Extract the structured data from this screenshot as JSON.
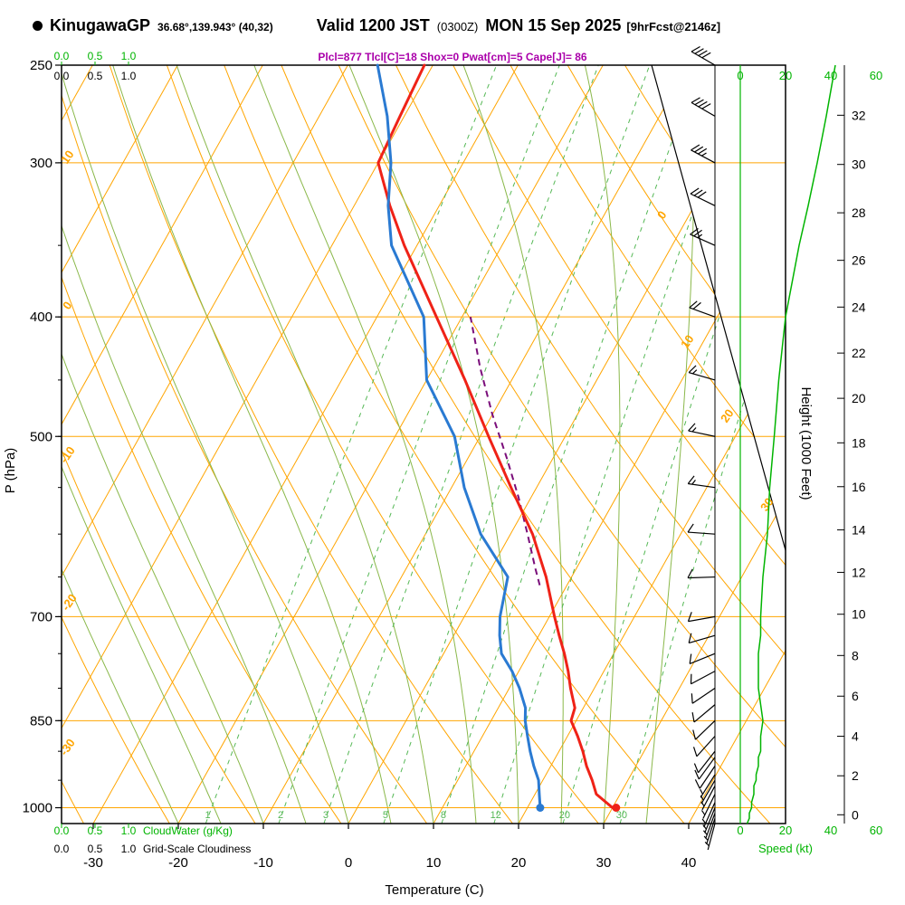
{
  "header": {
    "station": "KinugawaGP",
    "coords": "36.68°,139.943° (40,32)",
    "valid": "Valid 1200 JST",
    "valid_z": "(0300Z)",
    "valid_date": "MON 15 Sep 2025",
    "fcst": "[9hrFcst@2146z]",
    "stats": "Plcl=877 Tlcl[C]=18 Shox=0 Pwat[cm]=5 Cape[J]= 86"
  },
  "axes": {
    "pressure_label": "P (hPa)",
    "pressure_ticks": [
      250,
      300,
      400,
      500,
      700,
      850,
      1000
    ],
    "temp_label": "Temperature (C)",
    "temp_ticks": [
      -30,
      -20,
      -10,
      0,
      10,
      20,
      30,
      40
    ],
    "height_label": "Height (1000 Feet)",
    "height_ticks": [
      0,
      2,
      4,
      6,
      8,
      10,
      12,
      14,
      16,
      18,
      20,
      22,
      24,
      26,
      28,
      30,
      32
    ],
    "speed_label": "Speed (kt)",
    "speed_ticks": [
      0,
      20,
      40,
      60
    ],
    "cloud_scale": [
      "0.0",
      "0.5",
      "1.0"
    ],
    "cloudwater_label": "CloudWater (g/Kg)",
    "cloudiness_label": "Grid-Scale Cloudiness",
    "adiabat_labels": [
      10,
      0,
      -10,
      -20,
      -30
    ],
    "isotherm_labels": [
      0,
      10,
      20,
      30
    ],
    "mixing_ratio_values": [
      1,
      2,
      3,
      5,
      8,
      12,
      20,
      30
    ]
  },
  "chart_data": {
    "type": "skewt-logp",
    "pressure_range_hpa": [
      250,
      1030
    ],
    "surface_temp_axis_range_c": [
      -35,
      45
    ],
    "sounding": {
      "pressure": [
        1000,
        975,
        950,
        925,
        900,
        875,
        850,
        830,
        800,
        775,
        750,
        725,
        700,
        650,
        600,
        550,
        500,
        450,
        400,
        350,
        325,
        300,
        275,
        250
      ],
      "temperature": [
        30.0,
        27.2,
        25.8,
        24.2,
        22.8,
        21.2,
        19.4,
        19.0,
        17.2,
        15.8,
        14.2,
        12.4,
        10.6,
        7.0,
        2.6,
        -3.0,
        -9.0,
        -15.5,
        -23.0,
        -31.5,
        -35.8,
        -40.0,
        -40.5,
        -41.0
      ],
      "dewpoint": [
        21.5,
        20.5,
        19.5,
        18.0,
        16.6,
        15.3,
        14.0,
        13.2,
        11.2,
        9.2,
        6.8,
        5.4,
        4.2,
        2.5,
        -3.5,
        -8.5,
        -13.0,
        -20.0,
        -24.5,
        -33.0,
        -36.0,
        -38.5,
        -42.0,
        -46.5
      ]
    },
    "parcel": {
      "pressure": [
        660,
        640,
        600,
        560,
        520,
        480,
        440,
        400
      ],
      "temperature": [
        6.8,
        5.2,
        2.0,
        -1.5,
        -5.5,
        -10.0,
        -14.5,
        -19.0
      ]
    },
    "wind": {
      "pressure": [
        1030,
        1020,
        1010,
        1000,
        990,
        975,
        960,
        950,
        940,
        925,
        910,
        900,
        875,
        850,
        825,
        800,
        775,
        750,
        725,
        700,
        650,
        600,
        550,
        500,
        450,
        400,
        350,
        325,
        300,
        275,
        250
      ],
      "speed_kt": [
        3,
        4,
        4,
        5,
        5,
        6,
        6,
        7,
        7,
        8,
        8,
        9,
        9,
        10,
        9,
        8,
        8,
        8,
        9,
        9,
        10,
        12,
        13,
        15,
        17,
        20,
        26,
        30,
        34,
        38,
        42
      ],
      "direction_deg": [
        195,
        198,
        200,
        202,
        204,
        206,
        208,
        210,
        212,
        214,
        216,
        218,
        222,
        226,
        230,
        236,
        242,
        248,
        254,
        260,
        268,
        274,
        278,
        282,
        286,
        290,
        294,
        296,
        298,
        300,
        300
      ]
    },
    "indices": {
      "Plcl": 877,
      "Tlcl_C": 18,
      "Showalter": 0,
      "Pwat_cm": 5,
      "Cape_J": 86
    }
  },
  "colors": {
    "orange": "#ffa500",
    "moist_green": "#8ab84a",
    "mixing_green": "#55b855",
    "bright_green": "#00b400",
    "red": "#ef2217",
    "blue": "#2a7ad2",
    "parcel_purple": "#7a0d7a",
    "stats_purple": "#aa00aa",
    "black": "#000000"
  }
}
